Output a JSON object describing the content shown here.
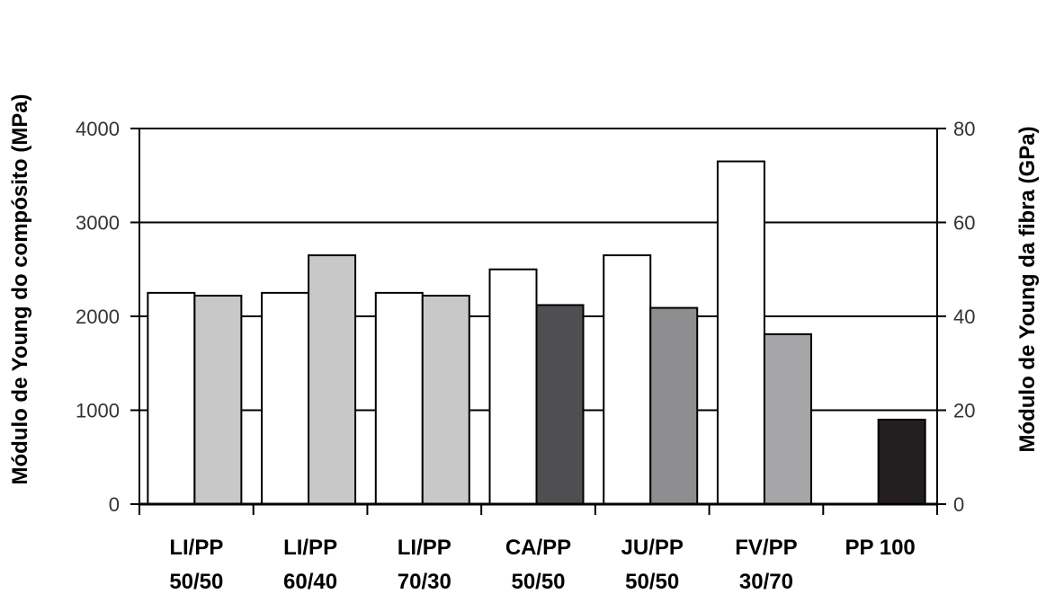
{
  "chart_data": {
    "type": "bar",
    "categories": [
      [
        "LI/PP",
        "50/50"
      ],
      [
        "LI/PP",
        "60/40"
      ],
      [
        "LI/PP",
        "70/30"
      ],
      [
        "CA/PP",
        "50/50"
      ],
      [
        "JU/PP",
        "50/50"
      ],
      [
        "FV/PP",
        "30/70"
      ],
      [
        "PP 100",
        ""
      ]
    ],
    "series": [
      {
        "axis": "right",
        "color": "#ffffff",
        "values": [
          45,
          45,
          45,
          50,
          53,
          73,
          null
        ]
      },
      {
        "axis": "left",
        "colors": [
          "#c8c8c8",
          "#c8c8c8",
          "#c8c8c8",
          "#4f4f52",
          "#8e8e90",
          "#a6a6a8",
          "#231f20"
        ],
        "values": [
          2220,
          2650,
          2220,
          2120,
          2090,
          1810,
          900
        ]
      }
    ],
    "ylabel": "Módulo de Young do compósito (MPa)",
    "y2label": "Módulo de Young da fibra (GPa)",
    "ylim": [
      0,
      4000
    ],
    "y2lim": [
      0,
      80
    ],
    "yticks": [
      0,
      1000,
      2000,
      3000,
      4000
    ],
    "y2ticks": [
      0,
      20,
      40,
      60,
      80
    ],
    "grid": true,
    "legend": "none"
  }
}
